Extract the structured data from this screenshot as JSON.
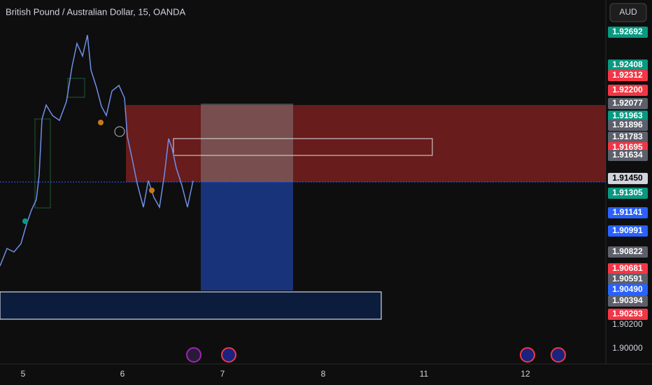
{
  "header": {
    "title": "British Pound / Australian Dollar, 15, OANDA",
    "currency": "AUD"
  },
  "price_labels": [
    {
      "text": "1.92692",
      "color": "#089981"
    },
    {
      "text": "1.92408",
      "color": "#089981"
    },
    {
      "text": "1.92312",
      "color": "#f23645"
    },
    {
      "text": "1.92200",
      "color": "#f23645"
    },
    {
      "text": "1.92077",
      "color": "#5d606b"
    },
    {
      "text": "1.91963",
      "color": "#089981"
    },
    {
      "text": "1.91896",
      "color": "#5d606b"
    },
    {
      "text": "1.91783",
      "color": "#5d606b"
    },
    {
      "text": "1.91695",
      "color": "#f23645"
    },
    {
      "text": "1.91634",
      "color": "#5d606b"
    },
    {
      "text": "1.91450",
      "color": "#d1d4dc"
    },
    {
      "text": "1.91305",
      "color": "#089981"
    },
    {
      "text": "1.91141",
      "color": "#2962ff"
    },
    {
      "text": "1.90991",
      "color": "#2962ff"
    },
    {
      "text": "1.90822",
      "color": "#5d606b"
    },
    {
      "text": "1.90681",
      "color": "#f23645"
    },
    {
      "text": "1.90591",
      "color": "#5d606b"
    },
    {
      "text": "1.90490",
      "color": "#2962ff"
    },
    {
      "text": "1.90394",
      "color": "#5d606b"
    },
    {
      "text": "1.90293",
      "color": "#f23645"
    }
  ],
  "axis_labels": [
    "1.90200",
    "1.90000"
  ],
  "time_labels": [
    "5",
    "6",
    "7",
    "8",
    "11",
    "12"
  ]
}
